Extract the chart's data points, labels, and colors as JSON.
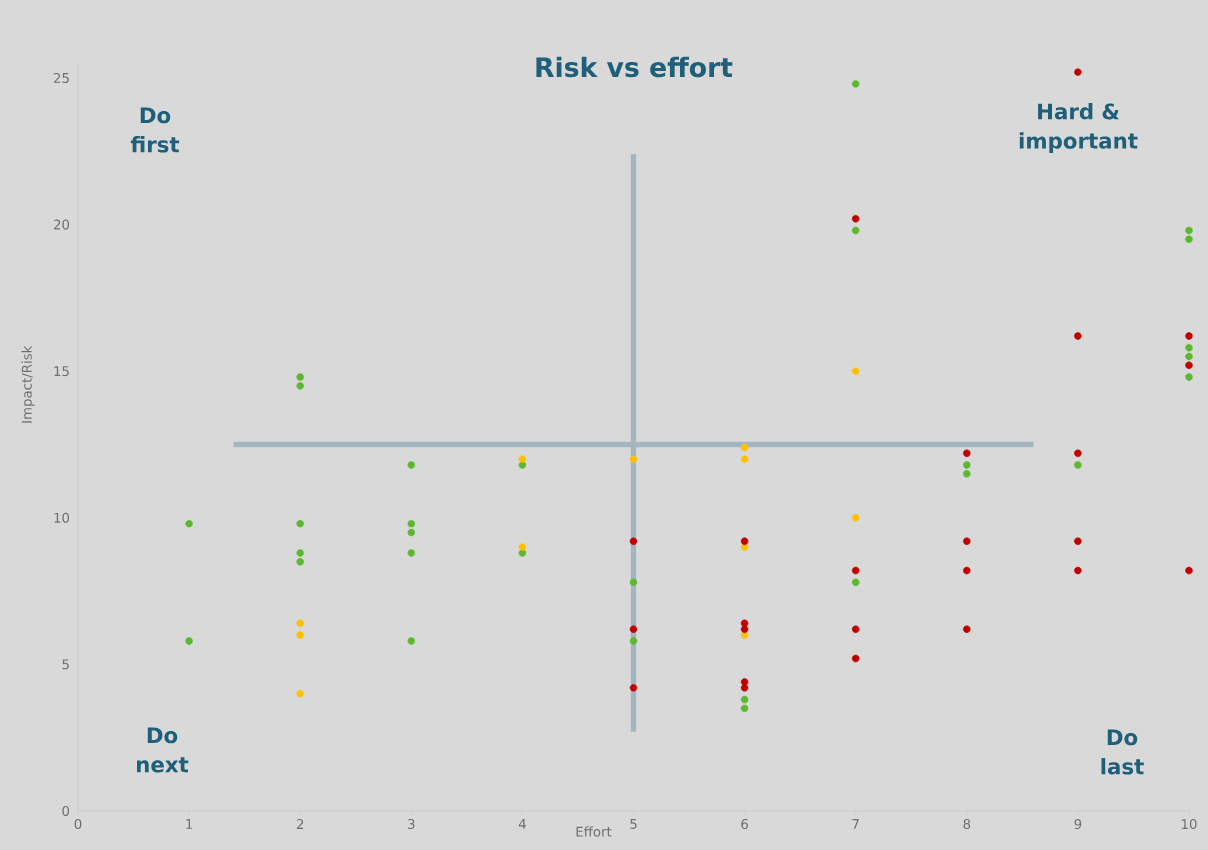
{
  "chart_data": {
    "type": "scatter",
    "title": "Risk vs effort",
    "xlabel": "Effort",
    "ylabel": "Impact/Risk",
    "xlim": [
      0,
      10
    ],
    "ylim": [
      0,
      25.5
    ],
    "xticks": [
      0,
      1,
      2,
      3,
      4,
      5,
      6,
      7,
      8,
      9,
      10
    ],
    "yticks": [
      0,
      5,
      10,
      15,
      20,
      25
    ],
    "marker": "circle",
    "annotations": [
      "Do first",
      "Hard & important",
      "Do next",
      "Do last"
    ],
    "series": [
      {
        "type": "line",
        "marker": "none",
        "color": "#a3b6c0",
        "x": [
          1.4,
          8.6
        ],
        "values": [
          12.5,
          12.5
        ]
      },
      {
        "type": "line",
        "marker": "none",
        "color": "#a3b6c0",
        "x": [
          5,
          5
        ],
        "values": [
          2.7,
          22.4
        ]
      },
      {
        "color": "#5cb82e",
        "x": [
          1,
          1,
          2,
          2,
          2,
          2,
          2,
          3,
          3,
          3,
          3,
          3,
          4,
          4,
          5,
          5,
          6,
          6,
          7,
          7,
          7,
          8,
          8,
          9,
          10,
          10,
          10,
          10,
          10
        ],
        "values": [
          9.8,
          5.8,
          14.8,
          14.5,
          9.8,
          8.8,
          8.5,
          11.8,
          9.8,
          9.5,
          8.8,
          5.8,
          11.8,
          8.8,
          7.8,
          5.8,
          3.8,
          3.5,
          24.8,
          19.8,
          7.8,
          11.8,
          11.5,
          11.8,
          19.8,
          19.5,
          15.8,
          15.5,
          14.8
        ]
      },
      {
        "color": "#ffc000",
        "x": [
          2,
          2,
          2,
          4,
          4,
          5,
          6,
          6,
          6,
          6,
          7,
          7
        ],
        "values": [
          6.4,
          6.0,
          4.0,
          12.0,
          9.0,
          12.0,
          12.4,
          12.0,
          9.0,
          6.0,
          15.0,
          10.0
        ]
      },
      {
        "color": "#c00000",
        "x": [
          5,
          5,
          5,
          6,
          6,
          6,
          6,
          6,
          7,
          7,
          7,
          7,
          8,
          8,
          8,
          8,
          9,
          9,
          9,
          9,
          9,
          10,
          10,
          10
        ],
        "values": [
          9.2,
          6.2,
          4.2,
          9.2,
          6.4,
          6.2,
          4.4,
          4.2,
          20.2,
          8.2,
          6.2,
          5.2,
          12.2,
          9.2,
          8.2,
          6.2,
          25.2,
          16.2,
          12.2,
          9.2,
          8.2,
          16.2,
          15.2,
          8.2
        ]
      }
    ]
  }
}
